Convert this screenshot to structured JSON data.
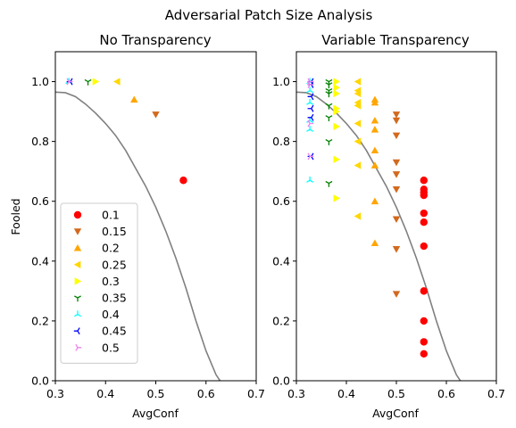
{
  "suptitle": "Adversarial Patch Size Analysis",
  "colors": {
    "0.1": "#ff0000",
    "0.15": "#d2691e",
    "0.2": "#ffa500",
    "0.25": "#ffd700",
    "0.3": "#ffff00",
    "0.35": "#008000",
    "0.4": "#00ffff",
    "0.45": "#0000ff",
    "0.5": "#ee82ee",
    "curve": "#808080"
  },
  "chart_data": [
    {
      "type": "scatter",
      "title": "No Transparency",
      "xlabel": "AvgConf",
      "ylabel": "Fooled",
      "xlim": [
        0.3,
        0.7
      ],
      "ylim": [
        0.0,
        1.1
      ],
      "xticks": [
        "0.3",
        "0.4",
        "0.5",
        "0.6",
        "0.7"
      ],
      "yticks": [
        "0.0",
        "0.2",
        "0.4",
        "0.6",
        "0.8",
        "1.0"
      ],
      "legend": {
        "position": "lower-left",
        "entries": [
          "0.1",
          "0.15",
          "0.2",
          "0.25",
          "0.3",
          "0.35",
          "0.4",
          "0.45",
          "0.5"
        ]
      },
      "series": [
        {
          "name": "0.1",
          "marker": "circle",
          "x": [
            0.555
          ],
          "y": [
            0.67
          ]
        },
        {
          "name": "0.15",
          "marker": "triangle-down",
          "x": [
            0.5
          ],
          "y": [
            0.89
          ]
        },
        {
          "name": "0.2",
          "marker": "triangle-up",
          "x": [
            0.457
          ],
          "y": [
            0.94
          ]
        },
        {
          "name": "0.25",
          "marker": "triangle-left",
          "x": [
            0.423
          ],
          "y": [
            1.0
          ]
        },
        {
          "name": "0.3",
          "marker": "triangle-right",
          "x": [
            0.38
          ],
          "y": [
            1.0
          ]
        },
        {
          "name": "0.35",
          "marker": "tri-down",
          "x": [
            0.365
          ],
          "y": [
            1.0
          ]
        },
        {
          "name": "0.4",
          "marker": "tri-up",
          "x": [
            0.327
          ],
          "y": [
            1.0
          ]
        },
        {
          "name": "0.45",
          "marker": "tri-left",
          "x": [
            0.33
          ],
          "y": [
            1.0
          ]
        },
        {
          "name": "0.5",
          "marker": "tri-right",
          "x": [
            0.327
          ],
          "y": [
            1.0
          ]
        }
      ],
      "curve": {
        "x": [
          0.3,
          0.32,
          0.34,
          0.36,
          0.38,
          0.4,
          0.42,
          0.44,
          0.46,
          0.48,
          0.5,
          0.52,
          0.54,
          0.56,
          0.58,
          0.6,
          0.62,
          0.628
        ],
        "y": [
          0.965,
          0.963,
          0.95,
          0.925,
          0.895,
          0.86,
          0.82,
          0.77,
          0.71,
          0.65,
          0.58,
          0.5,
          0.41,
          0.31,
          0.2,
          0.1,
          0.02,
          0.0
        ]
      }
    },
    {
      "type": "scatter",
      "title": "Variable Transparency",
      "xlabel": "AvgConf",
      "xlim": [
        0.3,
        0.7
      ],
      "ylim": [
        0.0,
        1.1
      ],
      "xticks": [
        "0.3",
        "0.4",
        "0.5",
        "0.6",
        "0.7"
      ],
      "yticks": [
        "0.0",
        "0.2",
        "0.4",
        "0.6",
        "0.8",
        "1.0"
      ],
      "series": [
        {
          "name": "0.1",
          "marker": "circle",
          "x": [
            0.555,
            0.555,
            0.555,
            0.555,
            0.555,
            0.555,
            0.555,
            0.555,
            0.555,
            0.555,
            0.555
          ],
          "y": [
            0.67,
            0.64,
            0.62,
            0.56,
            0.53,
            0.45,
            0.3,
            0.2,
            0.13,
            0.09,
            0.63
          ]
        },
        {
          "name": "0.15",
          "marker": "triangle-down",
          "x": [
            0.5,
            0.5,
            0.5,
            0.5,
            0.5,
            0.5,
            0.5,
            0.5,
            0.5
          ],
          "y": [
            0.89,
            0.87,
            0.82,
            0.73,
            0.69,
            0.64,
            0.54,
            0.44,
            0.29
          ]
        },
        {
          "name": "0.2",
          "marker": "triangle-up",
          "x": [
            0.457,
            0.457,
            0.457,
            0.457,
            0.457,
            0.457,
            0.457,
            0.457
          ],
          "y": [
            0.94,
            0.93,
            0.87,
            0.84,
            0.77,
            0.72,
            0.6,
            0.46
          ]
        },
        {
          "name": "0.25",
          "marker": "triangle-left",
          "x": [
            0.423,
            0.423,
            0.423,
            0.423,
            0.423,
            0.423,
            0.423,
            0.423,
            0.423,
            0.423
          ],
          "y": [
            1.0,
            0.97,
            0.96,
            0.93,
            0.92,
            0.86,
            0.8,
            0.72,
            0.55,
            0.92
          ]
        },
        {
          "name": "0.3",
          "marker": "triangle-right",
          "x": [
            0.38,
            0.38,
            0.38,
            0.38,
            0.38,
            0.38,
            0.38,
            0.38
          ],
          "y": [
            1.0,
            0.98,
            0.96,
            0.91,
            0.9,
            0.85,
            0.74,
            0.61
          ]
        },
        {
          "name": "0.35",
          "marker": "tri-down",
          "x": [
            0.365,
            0.365,
            0.365,
            0.365,
            0.365,
            0.365,
            0.365,
            0.365
          ],
          "y": [
            1.0,
            0.99,
            0.97,
            0.96,
            0.92,
            0.88,
            0.8,
            0.66
          ]
        },
        {
          "name": "0.4",
          "marker": "tri-up",
          "x": [
            0.327,
            0.327,
            0.327,
            0.327,
            0.327,
            0.327
          ],
          "y": [
            1.0,
            0.97,
            0.93,
            0.87,
            0.84,
            0.67
          ]
        },
        {
          "name": "0.45",
          "marker": "tri-left",
          "x": [
            0.33,
            0.33,
            0.33,
            0.33,
            0.33,
            0.33
          ],
          "y": [
            1.0,
            0.99,
            0.95,
            0.91,
            0.88,
            0.75
          ]
        },
        {
          "name": "0.5",
          "marker": "tri-right",
          "x": [
            0.327,
            0.327,
            0.327,
            0.327
          ],
          "y": [
            1.0,
            0.99,
            0.86,
            0.75
          ]
        }
      ],
      "curve": {
        "x": [
          0.3,
          0.32,
          0.34,
          0.36,
          0.38,
          0.4,
          0.42,
          0.44,
          0.46,
          0.48,
          0.5,
          0.52,
          0.54,
          0.56,
          0.58,
          0.6,
          0.62,
          0.628
        ],
        "y": [
          0.965,
          0.963,
          0.95,
          0.925,
          0.895,
          0.86,
          0.82,
          0.77,
          0.71,
          0.65,
          0.58,
          0.5,
          0.41,
          0.31,
          0.2,
          0.1,
          0.02,
          0.0
        ]
      }
    }
  ]
}
